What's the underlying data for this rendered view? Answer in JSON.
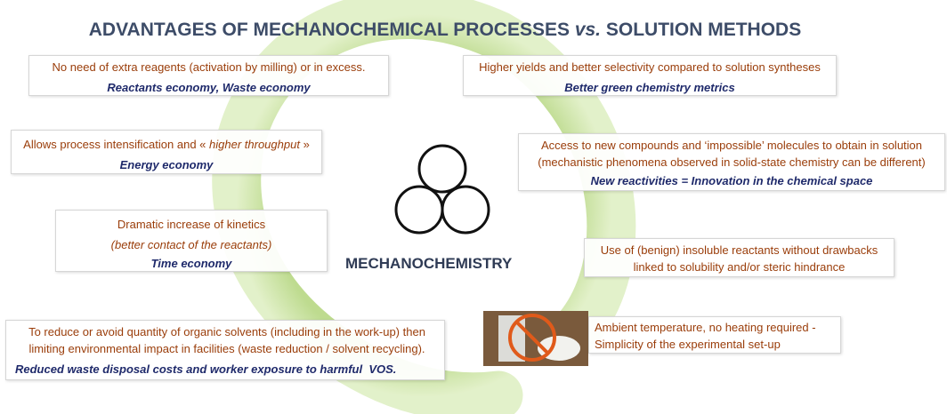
{
  "title": {
    "lead": "ADVANTAGES OF MECHANOCHEMICAL PROCESSES",
    "italic": "vs.",
    "tail": "SOLUTION METHODS"
  },
  "center_label": "MECHANOCHEMISTRY",
  "boxes": [
    {
      "lines": [
        "No need of extra reagents (activation by milling) or in excess."
      ],
      "emphasis": "Reactants economy, Waste economy"
    },
    {
      "lines": [
        "Higher yields and better selectivity compared to solution syntheses"
      ],
      "emphasis": "Better green chemistry metrics"
    },
    {
      "lines": [
        "Allows process intensification and «",
        "higher throughput",
        "»"
      ],
      "emphasis": "Energy economy"
    },
    {
      "lines": [
        "Access to new compounds and ‘impossible’ molecules to obtain in solution",
        "(mechanistic phenomena observed in solid-state chemistry can be different)"
      ],
      "emphasis": "New reactivities = Innovation in the chemical space"
    },
    {
      "lines": [
        "Dramatic increase of kinetics",
        "(better contact of the reactants)"
      ],
      "emphasis": "Time economy"
    },
    {
      "lines": [
        "Use of (benign) insoluble reactants without drawbacks",
        "linked to solubility and/or steric hindrance"
      ]
    },
    {
      "lines": [
        "To reduce or avoid quantity of organic solvents (including in the work-up) then",
        "limiting environmental impact in facilities (waste reduction / solvent recycling)."
      ],
      "emphasis": "Reduced waste disposal costs and worker exposure to harmful  VOS."
    },
    {
      "lines": [
        "Ambient temperature, no heating required -",
        "Simplicity of the experimental set-up"
      ]
    }
  ]
}
